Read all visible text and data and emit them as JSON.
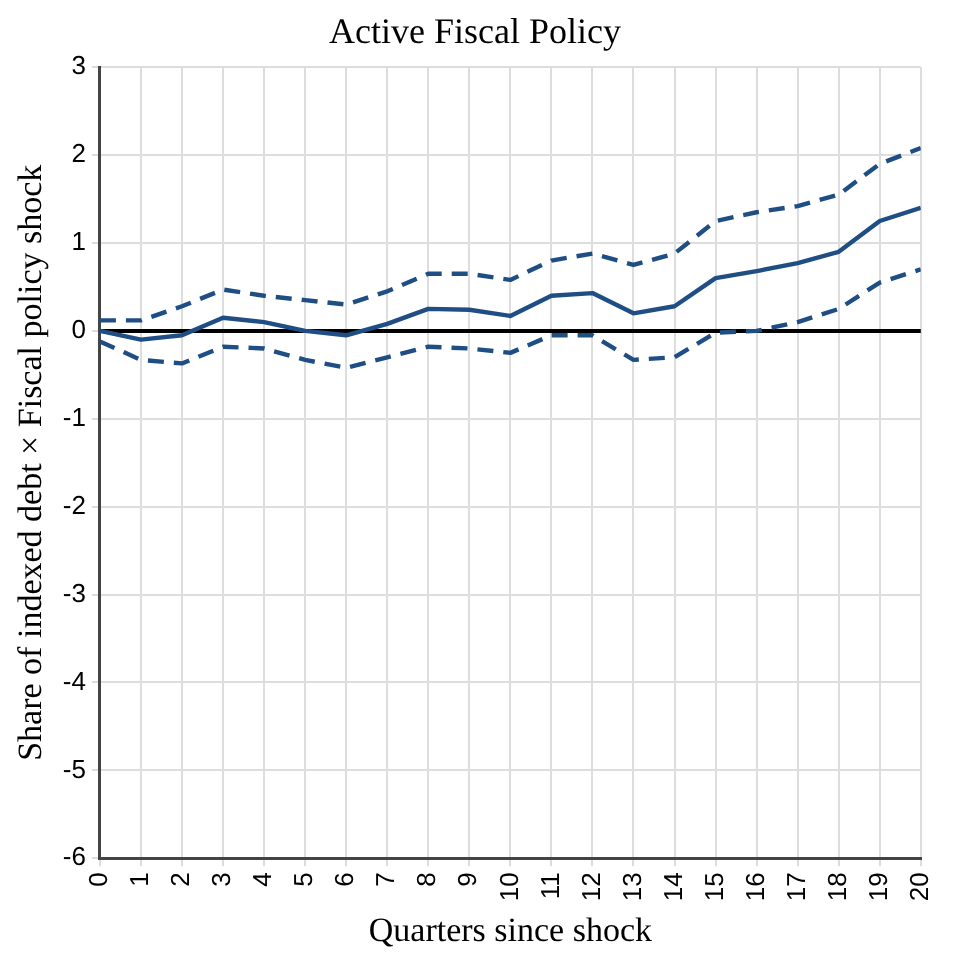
{
  "chart_data": {
    "type": "line",
    "title": "Active Fiscal Policy",
    "xlabel": "Quarters since shock",
    "ylabel": "Share of indexed debt × Fiscal policy shock",
    "x": [
      0,
      1,
      2,
      3,
      4,
      5,
      6,
      7,
      8,
      9,
      10,
      11,
      12,
      13,
      14,
      15,
      16,
      17,
      18,
      19,
      20
    ],
    "series": [
      {
        "color": "#1f4e85",
        "line_style": "solid",
        "values": [
          0,
          -0.1,
          -0.05,
          0.15,
          0.1,
          0,
          -0.05,
          0.08,
          0.25,
          0.24,
          0.17,
          0.4,
          0.43,
          0.2,
          0.28,
          0.6,
          0.68,
          0.77,
          0.9,
          1.25,
          1.4
        ]
      },
      {
        "color": "#1f4e85",
        "line_style": "dashed",
        "values": [
          0.12,
          0.12,
          0.28,
          0.47,
          0.4,
          0.35,
          0.3,
          0.45,
          0.65,
          0.65,
          0.58,
          0.8,
          0.88,
          0.75,
          0.88,
          1.25,
          1.35,
          1.42,
          1.55,
          1.9,
          2.08
        ]
      },
      {
        "color": "#1f4e85",
        "line_style": "dashed",
        "values": [
          -0.12,
          -0.33,
          -0.37,
          -0.18,
          -0.2,
          -0.33,
          -0.42,
          -0.3,
          -0.18,
          -0.2,
          -0.25,
          -0.05,
          -0.05,
          -0.33,
          -0.3,
          -0.02,
          0,
          0.1,
          0.25,
          0.55,
          0.7
        ]
      }
    ],
    "xlim": [
      0,
      20
    ],
    "xticks": [
      0,
      1,
      2,
      3,
      4,
      5,
      6,
      7,
      8,
      9,
      10,
      11,
      12,
      13,
      14,
      15,
      16,
      17,
      18,
      19,
      20
    ],
    "ylim": [
      -6,
      3
    ],
    "yticks": [
      -6,
      -5,
      -4,
      -3,
      -2,
      -1,
      0,
      1,
      2,
      3
    ],
    "ref_lines": [
      {
        "axis": "y",
        "value": 0,
        "color": "#000000"
      }
    ],
    "grid": true,
    "legend": false,
    "marker": "none"
  }
}
